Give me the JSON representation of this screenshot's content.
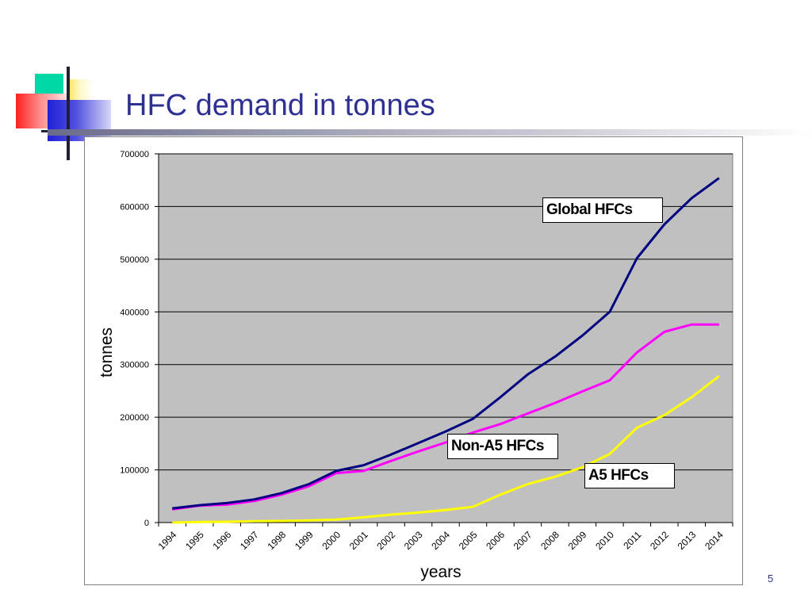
{
  "slide": {
    "title": "HFC demand in tonnes",
    "page_number": "5",
    "title_color": "#2e3192"
  },
  "chart_data": {
    "type": "line",
    "title": "",
    "xlabel": "years",
    "ylabel": "tonnes",
    "ylim": [
      0,
      700000
    ],
    "yticks": [
      0,
      100000,
      200000,
      300000,
      400000,
      500000,
      600000,
      700000
    ],
    "ytick_labels": [
      "0",
      "100000",
      "200000",
      "300000",
      "400000",
      "500000",
      "600000",
      "700000"
    ],
    "categories": [
      "1994",
      "1995",
      "1996",
      "1997",
      "1998",
      "1999",
      "2000",
      "2001",
      "2002",
      "2003",
      "2004",
      "2005",
      "2006",
      "2007",
      "2008",
      "2009",
      "2010",
      "2011",
      "2012",
      "2013",
      "2014"
    ],
    "grid": true,
    "plot_background": "#c0c0c0",
    "series": [
      {
        "name": "Global HFCs",
        "color": "#000080",
        "values": [
          27000,
          33000,
          37000,
          44000,
          56000,
          73000,
          98000,
          109000,
          129000,
          151000,
          173000,
          197000,
          238000,
          281000,
          315000,
          355000,
          400000,
          502000,
          566000,
          616000,
          654000
        ]
      },
      {
        "name": "Non-A5 HFCs",
        "color": "#ff00ff",
        "values": [
          25000,
          32000,
          34000,
          41000,
          53000,
          69000,
          94000,
          98000,
          117000,
          135000,
          152000,
          171000,
          187000,
          207000,
          227000,
          249000,
          270000,
          323000,
          362000,
          376000,
          376000
        ]
      },
      {
        "name": "A5 HFCs",
        "color": "#ffff00",
        "values": [
          0,
          1000,
          1500,
          2500,
          3000,
          4000,
          5500,
          10000,
          15000,
          19000,
          24000,
          30000,
          53000,
          73000,
          87000,
          105000,
          130000,
          180000,
          204000,
          238000,
          278000
        ]
      }
    ]
  }
}
